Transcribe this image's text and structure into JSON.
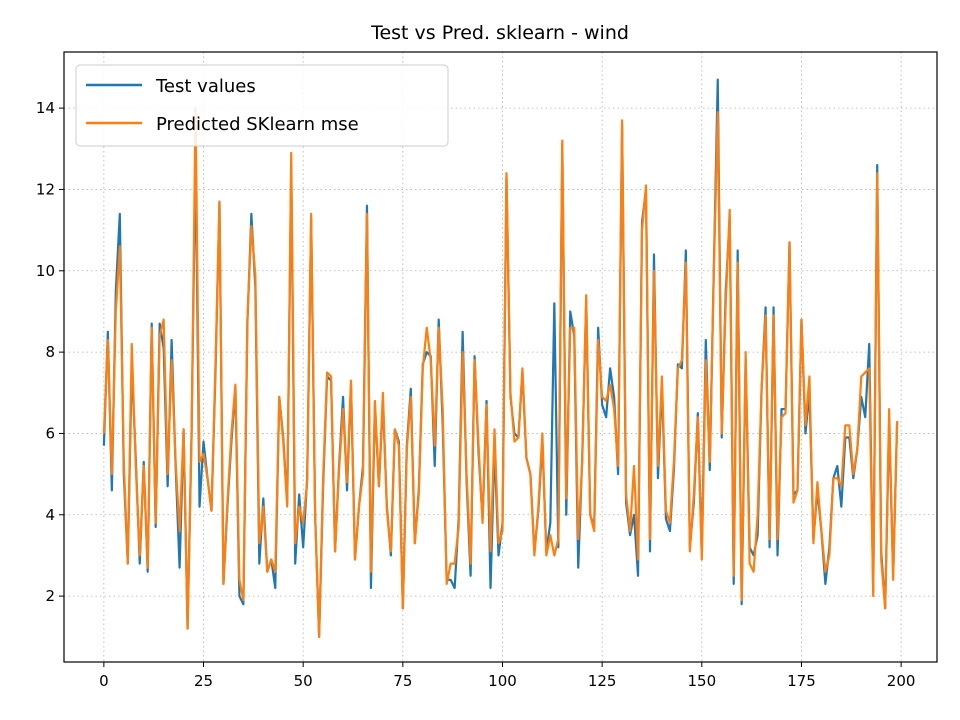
{
  "chart_data": {
    "type": "line",
    "title": "Test vs Pred. sklearn - wind",
    "xlabel": "",
    "ylabel": "",
    "xlim": [
      -10,
      209
    ],
    "ylim": [
      0.38,
      15.38
    ],
    "xticks": [
      0,
      25,
      50,
      75,
      100,
      125,
      150,
      175,
      200
    ],
    "yticks": [
      2,
      4,
      6,
      8,
      10,
      12,
      14
    ],
    "grid": true,
    "legend_position": "upper-left",
    "series": [
      {
        "name": "Test values",
        "color": "#1f77b4",
        "values": [
          5.7,
          8.5,
          4.6,
          9.5,
          11.4,
          5.0,
          2.8,
          7.7,
          5.4,
          2.8,
          5.3,
          2.6,
          8.7,
          3.7,
          8.7,
          8.1,
          4.7,
          8.3,
          5.2,
          2.7,
          6.1,
          1.2,
          6.0,
          13.0,
          4.2,
          5.8,
          4.9,
          4.1,
          7.5,
          11.7,
          2.3,
          4.2,
          5.8,
          7.1,
          2.0,
          1.8,
          8.7,
          11.4,
          9.6,
          2.8,
          4.4,
          2.6,
          2.9,
          2.2,
          6.9,
          5.9,
          4.3,
          12.6,
          2.8,
          4.5,
          3.2,
          4.9,
          11.3,
          4.0,
          1.0,
          4.7,
          7.4,
          7.3,
          3.1,
          5.2,
          6.9,
          4.6,
          7.2,
          2.9,
          4.2,
          5.2,
          11.6,
          2.2,
          6.7,
          4.7,
          6.8,
          4.2,
          3.0,
          6.1,
          5.8,
          1.7,
          5.7,
          7.1,
          3.3,
          4.6,
          7.7,
          8.0,
          7.9,
          5.2,
          8.8,
          6.2,
          2.4,
          2.4,
          2.2,
          3.9,
          8.5,
          4.8,
          2.5,
          7.9,
          5.5,
          3.9,
          6.8,
          2.2,
          5.7,
          3.0,
          3.8,
          12.3,
          6.9,
          6.0,
          5.9,
          7.5,
          5.4,
          5.0,
          3.1,
          4.1,
          5.8,
          3.1,
          3.8,
          9.2,
          3.2,
          13.1,
          4.0,
          9.0,
          8.4,
          2.7,
          5.4,
          9.3,
          4.0,
          3.7,
          8.6,
          6.7,
          6.4,
          7.6,
          6.9,
          5.0,
          13.6,
          4.3,
          3.5,
          4.0,
          2.5,
          11.2,
          12.0,
          3.1,
          10.4,
          4.9,
          7.2,
          3.9,
          3.6,
          5.1,
          7.7,
          7.6,
          10.5,
          3.2,
          4.3,
          6.5,
          3.0,
          8.3,
          5.1,
          10.0,
          14.7,
          5.9,
          9.5,
          11.3,
          2.3,
          10.5,
          1.8,
          7.8,
          3.2,
          3.0,
          3.5,
          7.1,
          9.1,
          3.2,
          9.1,
          3.0,
          6.6,
          6.6,
          10.7,
          4.5,
          4.6,
          8.8,
          6.0,
          7.0,
          3.4,
          4.6,
          3.6,
          2.3,
          3.2,
          4.9,
          5.2,
          4.2,
          5.9,
          5.9,
          4.9,
          5.6,
          6.9,
          6.4,
          8.2,
          2.1,
          12.6,
          3.1,
          1.7,
          6.3,
          2.5,
          6.3
        ]
      },
      {
        "name": "Predicted SKlearn mse",
        "color": "#ff7f0e",
        "values": [
          6.0,
          8.3,
          5.0,
          9.0,
          10.6,
          5.3,
          2.8,
          8.2,
          5.2,
          3.0,
          5.2,
          2.7,
          8.6,
          3.8,
          8.4,
          8.8,
          5.0,
          7.8,
          5.3,
          3.6,
          6.1,
          1.2,
          5.9,
          14.0,
          5.3,
          5.5,
          4.9,
          4.1,
          7.7,
          11.7,
          2.3,
          4.3,
          6.0,
          7.2,
          2.4,
          1.9,
          8.8,
          11.1,
          9.9,
          3.3,
          4.2,
          2.6,
          2.9,
          2.6,
          6.9,
          5.8,
          4.2,
          12.9,
          3.3,
          4.2,
          3.8,
          4.8,
          11.4,
          4.0,
          1.0,
          4.9,
          7.5,
          7.4,
          3.1,
          5.1,
          6.6,
          4.8,
          7.3,
          2.9,
          4.2,
          5.0,
          11.4,
          2.6,
          6.8,
          4.7,
          7.0,
          4.1,
          3.1,
          6.1,
          5.7,
          1.7,
          5.6,
          6.9,
          3.3,
          4.5,
          7.6,
          8.6,
          7.8,
          5.7,
          8.6,
          6.6,
          2.3,
          2.8,
          2.8,
          3.7,
          8.0,
          5.0,
          2.8,
          7.8,
          5.7,
          3.8,
          6.7,
          3.1,
          6.1,
          3.3,
          3.6,
          12.4,
          7.0,
          5.8,
          5.9,
          7.6,
          5.4,
          5.0,
          3.0,
          4.2,
          6.0,
          3.0,
          3.5,
          3.0,
          3.4,
          13.2,
          4.4,
          8.6,
          8.6,
          3.4,
          5.3,
          9.4,
          4.0,
          3.6,
          8.3,
          6.9,
          6.8,
          7.2,
          6.6,
          5.2,
          13.7,
          4.5,
          3.6,
          5.2,
          2.9,
          11.0,
          12.1,
          3.4,
          10.0,
          5.2,
          7.4,
          4.1,
          3.8,
          5.3,
          7.6,
          7.8,
          10.2,
          3.1,
          4.5,
          6.4,
          2.9,
          7.8,
          5.3,
          9.9,
          13.9,
          6.0,
          9.2,
          11.5,
          2.5,
          10.2,
          1.9,
          8.0,
          2.8,
          2.6,
          4.0,
          7.1,
          8.9,
          3.4,
          8.9,
          3.4,
          6.4,
          6.5,
          10.7,
          4.3,
          4.6,
          8.8,
          6.2,
          7.4,
          3.3,
          4.8,
          3.6,
          2.6,
          3.0,
          4.9,
          4.9,
          4.7,
          6.2,
          6.2,
          5.0,
          5.6,
          7.4,
          7.5,
          7.6,
          2.0,
          12.4,
          2.9,
          1.7,
          6.6,
          2.4,
          6.3
        ]
      }
    ]
  }
}
